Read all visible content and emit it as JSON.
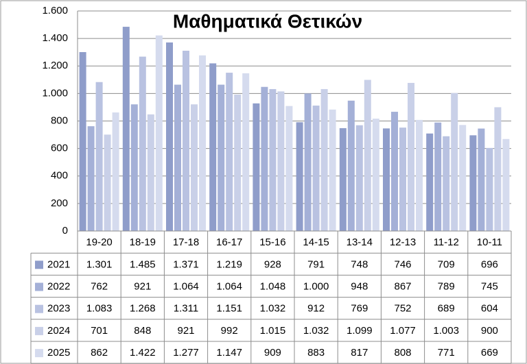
{
  "chart_data": {
    "type": "bar",
    "title": "Μαθηματικά Θετικών",
    "categories": [
      "19-20",
      "18-19",
      "17-18",
      "16-17",
      "15-16",
      "14-15",
      "13-14",
      "12-13",
      "11-12",
      "10-11"
    ],
    "series": [
      {
        "name": "2021",
        "color": "#8f9dca",
        "values": [
          1301,
          1485,
          1371,
          1219,
          928,
          791,
          748,
          746,
          709,
          696
        ],
        "value_labels": [
          "1.301",
          "1.485",
          "1.371",
          "1.219",
          "928",
          "791",
          "748",
          "746",
          "709",
          "696"
        ]
      },
      {
        "name": "2022",
        "color": "#a4b0d7",
        "values": [
          762,
          921,
          1064,
          1064,
          1048,
          1000,
          948,
          867,
          789,
          745
        ],
        "value_labels": [
          "762",
          "921",
          "1.064",
          "1.064",
          "1.048",
          "1.000",
          "948",
          "867",
          "789",
          "745"
        ]
      },
      {
        "name": "2023",
        "color": "#b9c2e1",
        "values": [
          1083,
          1268,
          1311,
          1151,
          1032,
          912,
          769,
          752,
          689,
          604
        ],
        "value_labels": [
          "1.083",
          "1.268",
          "1.311",
          "1.151",
          "1.032",
          "912",
          "769",
          "752",
          "689",
          "604"
        ]
      },
      {
        "name": "2024",
        "color": "#c9d0e8",
        "values": [
          701,
          848,
          921,
          992,
          1015,
          1032,
          1099,
          1077,
          1003,
          900
        ],
        "value_labels": [
          "701",
          "848",
          "921",
          "992",
          "1.015",
          "1.032",
          "1.099",
          "1.077",
          "1.003",
          "900"
        ]
      },
      {
        "name": "2025",
        "color": "#d5dbee",
        "values": [
          862,
          1422,
          1277,
          1147,
          909,
          883,
          817,
          808,
          771,
          669
        ],
        "value_labels": [
          "862",
          "1.422",
          "1.277",
          "1.147",
          "909",
          "883",
          "817",
          "808",
          "771",
          "669"
        ]
      }
    ],
    "ylim": [
      0,
      1600
    ],
    "yticks": [
      0,
      200,
      400,
      600,
      800,
      {
        "value": 1000,
        "label": "1.000"
      },
      {
        "value": 1200,
        "label": "1.200"
      },
      {
        "value": 1400,
        "label": "1.400"
      },
      {
        "value": 1600,
        "label": "1.600"
      }
    ],
    "grid": true
  }
}
